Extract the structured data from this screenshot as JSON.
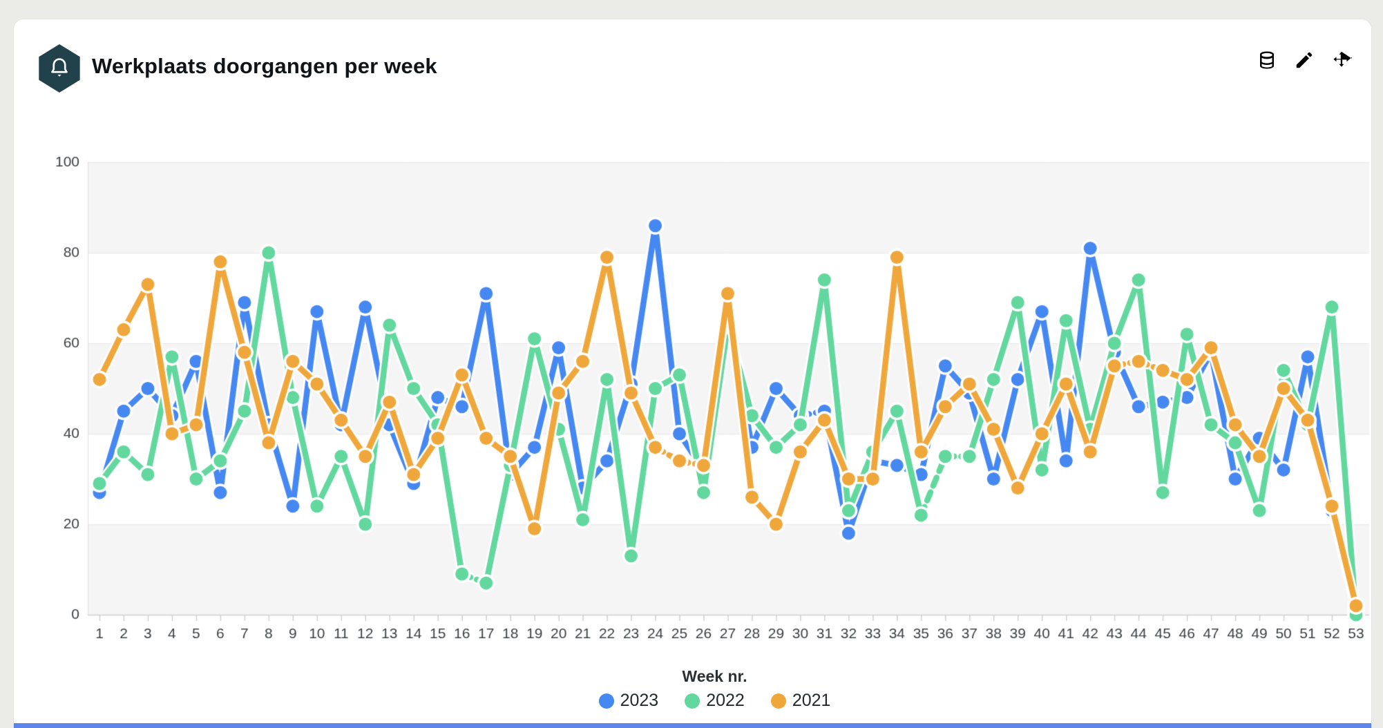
{
  "header": {
    "title": "Werkplaats doorgangen per week",
    "toolbar": [
      {
        "name": "data-source"
      },
      {
        "name": "edit"
      },
      {
        "name": "move"
      }
    ]
  },
  "colors": {
    "accent_blue": "#4688f1",
    "accent_green": "#62d79e",
    "accent_orange": "#efa73c",
    "band_gray": "#f5f5f5",
    "gridline": "#e7e7e7",
    "axis_text": "#3c4043",
    "icon_hex_bg": "#21424a"
  },
  "chart_data": {
    "type": "line",
    "title": "Werkplaats doorgangen per week",
    "xlabel": "Week nr.",
    "ylabel": "",
    "ylim": [
      0,
      100
    ],
    "yticks": [
      0,
      20,
      40,
      60,
      80,
      100
    ],
    "grid": "horizontal-bands-alternating",
    "legend_position": "bottom",
    "x": [
      1,
      2,
      3,
      4,
      5,
      6,
      7,
      8,
      9,
      10,
      11,
      12,
      13,
      14,
      15,
      16,
      17,
      18,
      19,
      20,
      21,
      22,
      23,
      24,
      25,
      26,
      27,
      28,
      29,
      30,
      31,
      32,
      33,
      34,
      35,
      36,
      37,
      38,
      39,
      40,
      41,
      42,
      43,
      44,
      45,
      46,
      47,
      48,
      49,
      50,
      51,
      52,
      53
    ],
    "series": [
      {
        "name": "2023",
        "color": "#4688f1",
        "values": [
          27,
          45,
          50,
          44,
          56,
          27,
          69,
          42,
          24,
          67,
          42,
          68,
          42,
          29,
          48,
          46,
          71,
          31,
          37,
          59,
          28,
          34,
          51,
          86,
          40,
          32,
          67,
          37,
          50,
          44,
          45,
          18,
          34,
          33,
          31,
          55,
          49,
          30,
          52,
          67,
          34,
          81,
          58,
          46,
          47,
          48,
          58,
          30,
          39,
          32,
          57,
          23,
          1
        ],
        "dashed_segments": [
          [
            30,
            31
          ],
          [
            44,
            46
          ]
        ]
      },
      {
        "name": "2022",
        "color": "#62d79e",
        "values": [
          29,
          36,
          31,
          57,
          30,
          34,
          45,
          80,
          48,
          24,
          35,
          20,
          64,
          50,
          42,
          9,
          7,
          33,
          61,
          41,
          21,
          52,
          13,
          50,
          53,
          27,
          64,
          44,
          37,
          42,
          74,
          23,
          36,
          45,
          22,
          35,
          35,
          52,
          69,
          32,
          65,
          41,
          60,
          74,
          27,
          62,
          42,
          38,
          23,
          54,
          42,
          68,
          0
        ],
        "dashed_segments": [
          [
            16,
            17
          ],
          [
            35,
            37
          ]
        ]
      },
      {
        "name": "2021",
        "color": "#efa73c",
        "values": [
          52,
          63,
          73,
          40,
          42,
          78,
          58,
          38,
          56,
          51,
          43,
          35,
          47,
          31,
          39,
          53,
          39,
          35,
          19,
          49,
          56,
          79,
          49,
          37,
          34,
          33,
          71,
          26,
          20,
          36,
          43,
          30,
          30,
          79,
          36,
          46,
          51,
          41,
          28,
          40,
          51,
          36,
          55,
          56,
          54,
          52,
          59,
          42,
          35,
          50,
          43,
          24,
          2
        ],
        "dashed_segments": [
          [
            24,
            26
          ],
          [
            43,
            45
          ]
        ]
      }
    ]
  }
}
